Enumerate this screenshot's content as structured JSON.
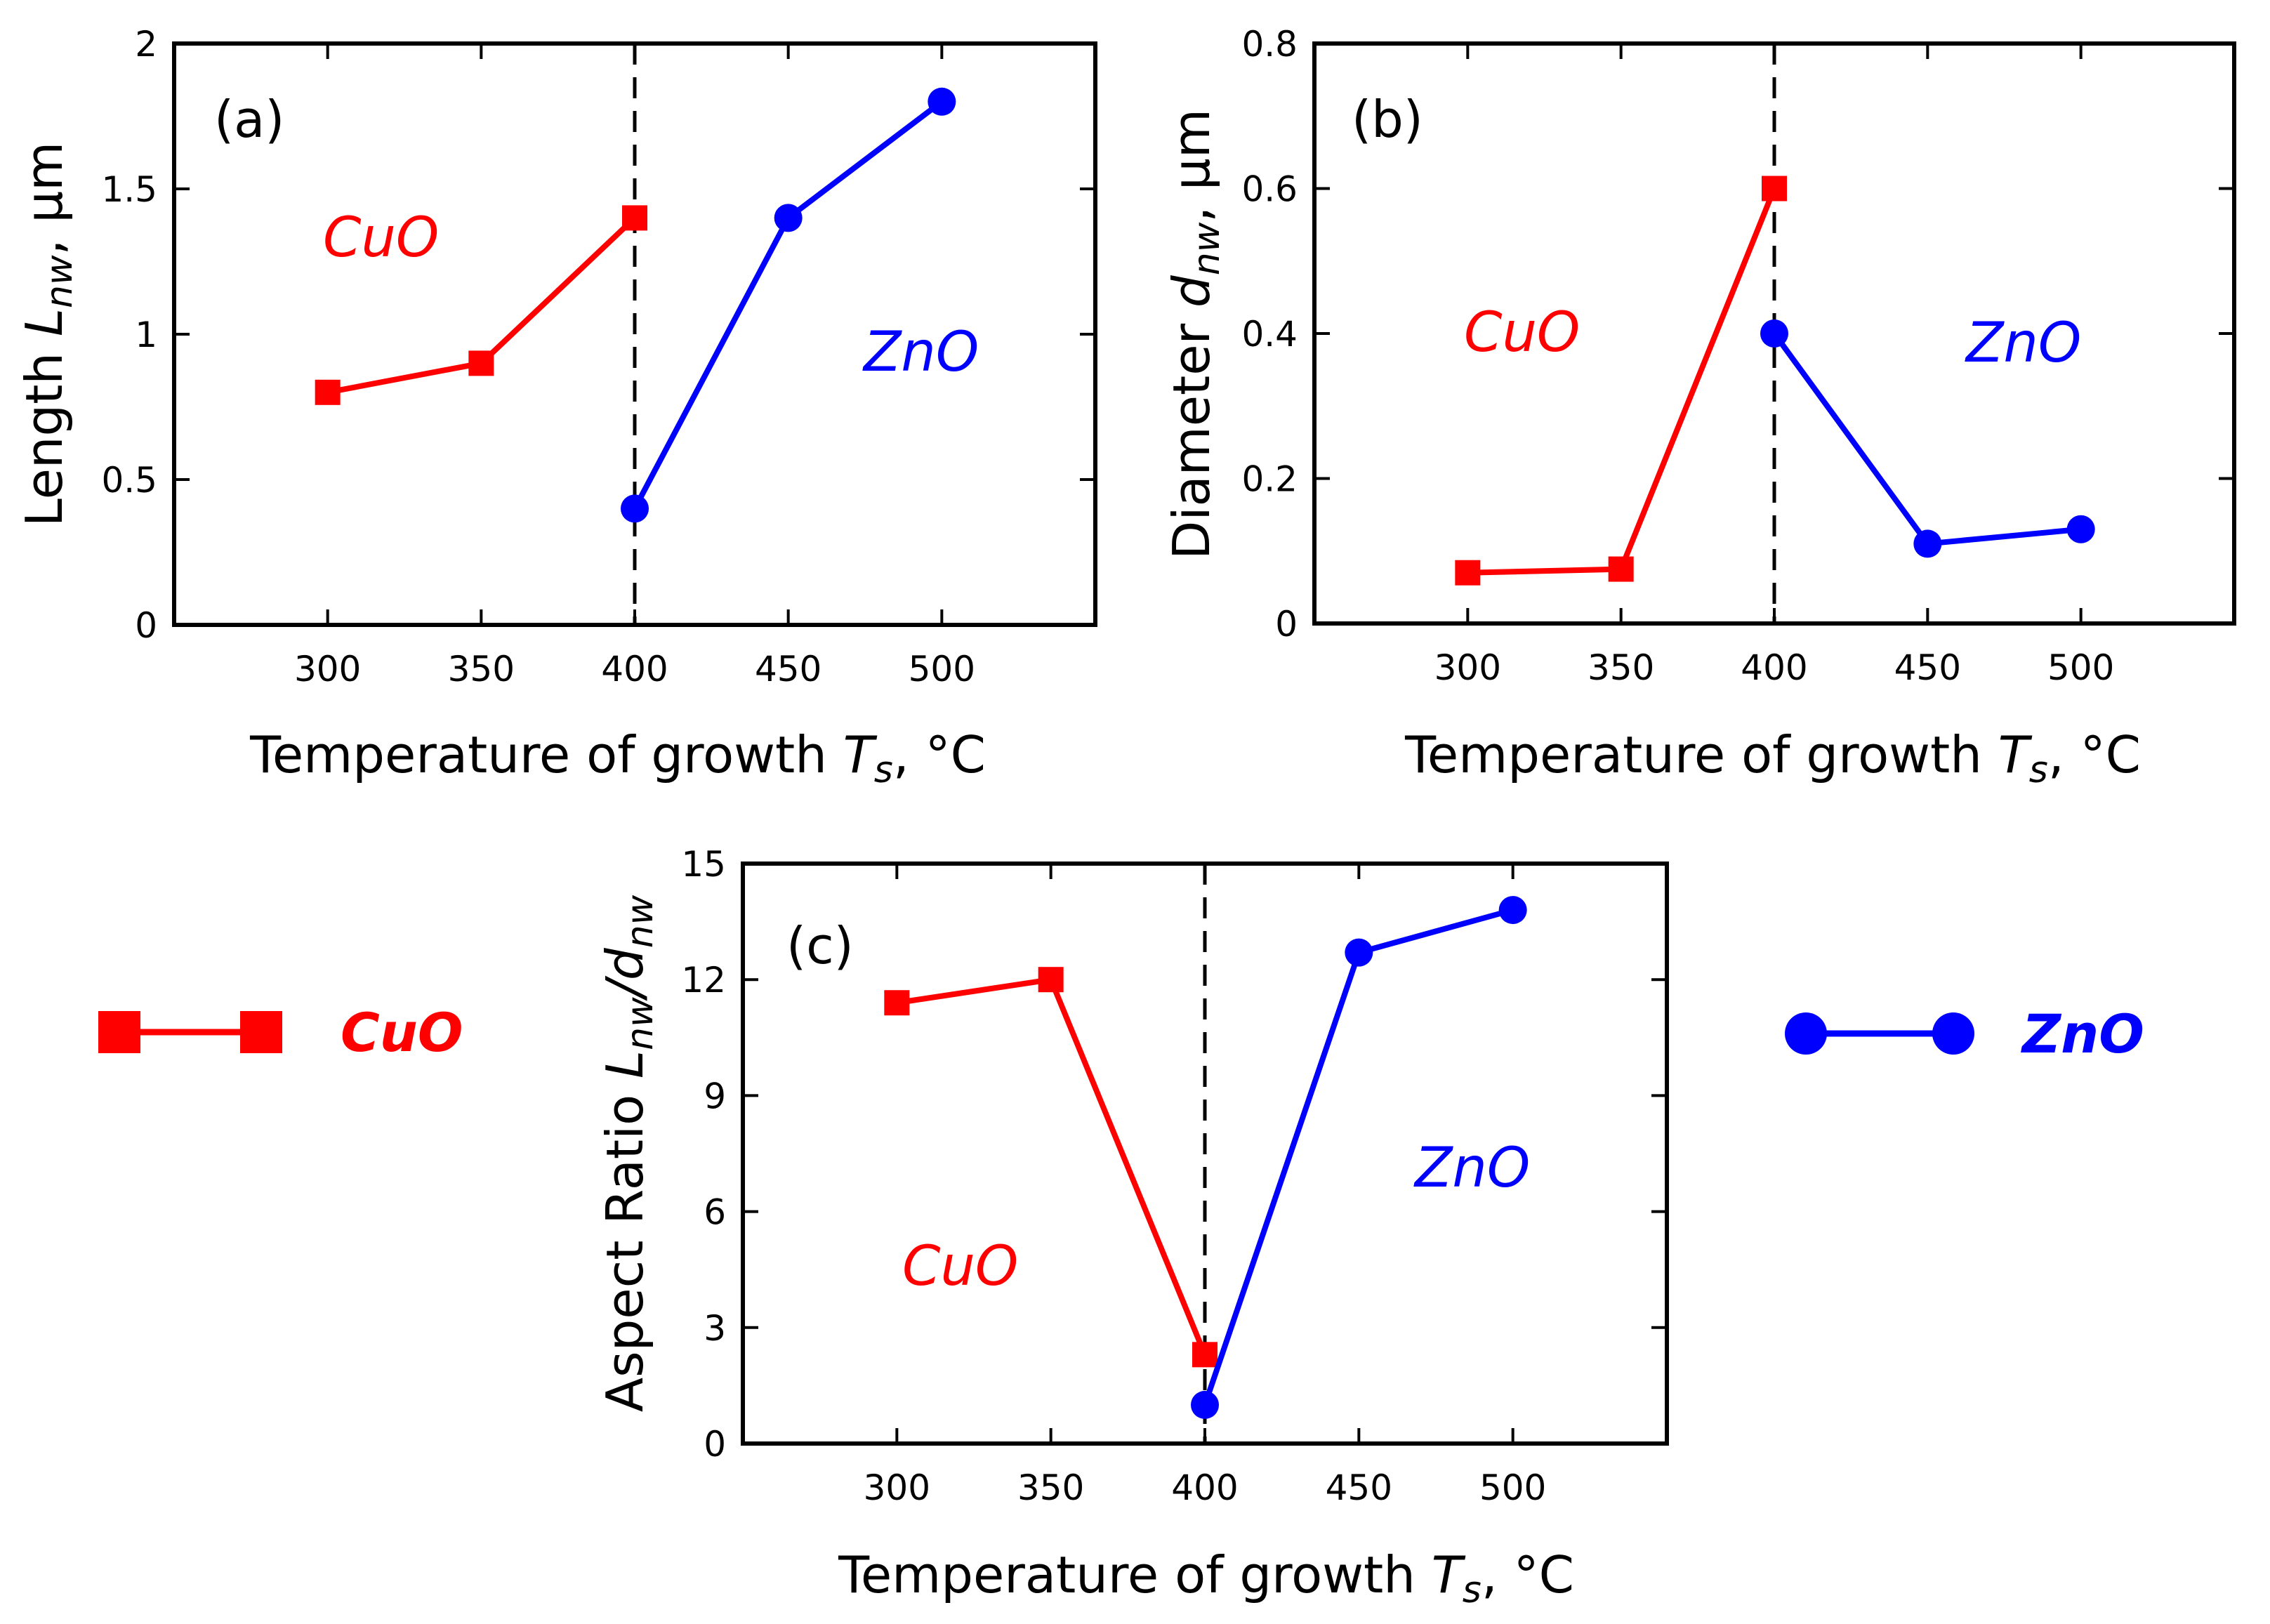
{
  "chart_data": [
    {
      "type": "line",
      "panel_label": "(a)",
      "ylabel_parts": [
        "Length ",
        "L",
        "nw",
        ", µm"
      ],
      "xlabel_parts": [
        "Temperature of growth ",
        "T",
        "s",
        ", °C"
      ],
      "xlim": [
        250,
        550
      ],
      "ylim": [
        0,
        2
      ],
      "xticks": [
        "300",
        "350",
        "400",
        "450",
        "500"
      ],
      "yticks": [
        "0",
        "0.5",
        "1",
        "1.5",
        "2"
      ],
      "divider_x": 400,
      "series": [
        {
          "name": "CuO",
          "color": "#ff0000",
          "marker": "square",
          "x": [
            300,
            350,
            400
          ],
          "y": [
            0.8,
            0.9,
            1.4
          ]
        },
        {
          "name": "ZnO",
          "color": "#0000ff",
          "marker": "circle",
          "x": [
            400,
            450,
            500
          ],
          "y": [
            0.4,
            1.4,
            1.8
          ]
        }
      ],
      "annotations": [
        {
          "text": "CuO",
          "color": "#ff0000"
        },
        {
          "text": "ZnO",
          "color": "#0000ff"
        }
      ]
    },
    {
      "type": "line",
      "panel_label": "(b)",
      "ylabel_parts": [
        "Diameter ",
        "d",
        "nw",
        ", µm"
      ],
      "xlabel_parts": [
        "Temperature of growth ",
        "T",
        "s",
        ", °C"
      ],
      "xlim": [
        250,
        550
      ],
      "ylim": [
        0,
        0.8
      ],
      "xticks": [
        "300",
        "350",
        "400",
        "450",
        "500"
      ],
      "yticks": [
        "0",
        "0.2",
        "0.4",
        "0.6",
        "0.8"
      ],
      "divider_x": 400,
      "series": [
        {
          "name": "CuO",
          "color": "#ff0000",
          "marker": "square",
          "x": [
            300,
            350,
            400
          ],
          "y": [
            0.07,
            0.075,
            0.6
          ]
        },
        {
          "name": "ZnO",
          "color": "#0000ff",
          "marker": "circle",
          "x": [
            400,
            450,
            500
          ],
          "y": [
            0.4,
            0.11,
            0.13
          ]
        }
      ],
      "annotations": [
        {
          "text": "CuO",
          "color": "#ff0000"
        },
        {
          "text": "ZnO",
          "color": "#0000ff"
        }
      ]
    },
    {
      "type": "line",
      "panel_label": "(c)",
      "ylabel_parts": [
        "Aspect Ratio ",
        "L",
        "nw",
        "/",
        "d",
        "nw"
      ],
      "xlabel_parts": [
        "Temperature of growth ",
        "T",
        "s",
        ", °C"
      ],
      "xlim": [
        250,
        550
      ],
      "ylim": [
        0,
        15
      ],
      "xticks": [
        "300",
        "350",
        "400",
        "450",
        "500"
      ],
      "yticks": [
        "0",
        "3",
        "6",
        "9",
        "12",
        "15"
      ],
      "divider_x": 400,
      "series": [
        {
          "name": "CuO",
          "color": "#ff0000",
          "marker": "square",
          "x": [
            300,
            350,
            400
          ],
          "y": [
            11.4,
            12.0,
            2.3
          ]
        },
        {
          "name": "ZnO",
          "color": "#0000ff",
          "marker": "circle",
          "x": [
            400,
            450,
            500
          ],
          "y": [
            1.0,
            12.7,
            13.8
          ]
        }
      ],
      "annotations": [
        {
          "text": "CuO",
          "color": "#ff0000"
        },
        {
          "text": "ZnO",
          "color": "#0000ff"
        }
      ]
    }
  ],
  "legend": [
    {
      "label": "CuO",
      "color": "#ff0000",
      "marker": "square"
    },
    {
      "label": "ZnO",
      "color": "#0000ff",
      "marker": "circle"
    }
  ]
}
